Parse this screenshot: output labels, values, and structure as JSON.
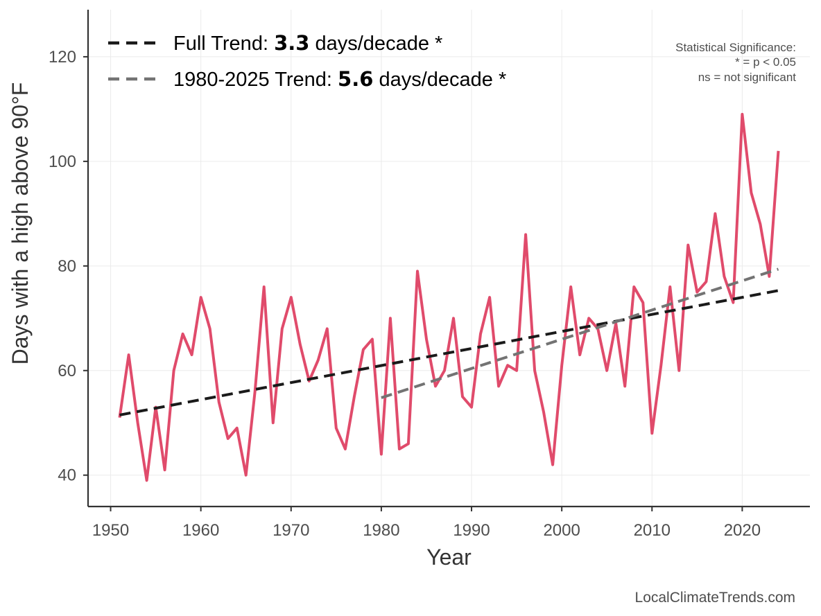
{
  "chart_data": {
    "type": "line",
    "xlabel": "Year",
    "ylabel": "Days with a high above 90°F",
    "xlim": [
      1947.5,
      2027.5
    ],
    "ylim": [
      34,
      129
    ],
    "xticks": [
      1950,
      1960,
      1970,
      1980,
      1990,
      2000,
      2010,
      2020
    ],
    "yticks": [
      40,
      60,
      80,
      100,
      120
    ],
    "grid": true,
    "legend_position": "top-left",
    "series": [
      {
        "name": "",
        "color": "#e04b6b",
        "x": [
          1951,
          1952,
          1953,
          1954,
          1955,
          1956,
          1957,
          1958,
          1959,
          1960,
          1961,
          1962,
          1963,
          1964,
          1965,
          1966,
          1967,
          1968,
          1969,
          1970,
          1971,
          1972,
          1973,
          1974,
          1975,
          1976,
          1977,
          1978,
          1979,
          1980,
          1981,
          1982,
          1983,
          1984,
          1985,
          1986,
          1987,
          1988,
          1989,
          1990,
          1991,
          1992,
          1993,
          1994,
          1995,
          1996,
          1997,
          1998,
          1999,
          2000,
          2001,
          2002,
          2003,
          2004,
          2005,
          2006,
          2007,
          2008,
          2009,
          2010,
          2011,
          2012,
          2013,
          2014,
          2015,
          2016,
          2017,
          2018,
          2019,
          2020,
          2021,
          2022,
          2023,
          2024
        ],
        "values": [
          51,
          63,
          50,
          39,
          53,
          41,
          60,
          67,
          63,
          74,
          68,
          54,
          47,
          49,
          40,
          56,
          76,
          50,
          68,
          74,
          65,
          58,
          62,
          68,
          49,
          45,
          55,
          64,
          66,
          44,
          70,
          45,
          46,
          79,
          66,
          57,
          60,
          70,
          55,
          53,
          67,
          74,
          57,
          61,
          60,
          86,
          60,
          52,
          42,
          61,
          76,
          63,
          70,
          68,
          60,
          69,
          57,
          76,
          73,
          48,
          61,
          76,
          60,
          84,
          75,
          77,
          90,
          78,
          73,
          109,
          94,
          88,
          78,
          102
        ]
      }
    ],
    "trend_lines": [
      {
        "label_prefix": "Full Trend: ",
        "value": "3.3",
        "label_suffix": " days/decade *",
        "color": "#1a1a1a",
        "x": [
          1951,
          2024
        ],
        "y": [
          51.5,
          75.3
        ]
      },
      {
        "label_prefix": "1980-2025 Trend: ",
        "value": "5.6",
        "label_suffix": " days/decade *",
        "color": "#737373",
        "x": [
          1980,
          2024
        ],
        "y": [
          54.8,
          79.4
        ]
      }
    ],
    "annotations": {
      "significance_title": "Statistical Significance:",
      "significance_line1": "* = p < 0.05",
      "significance_line2": "ns = not significant"
    }
  },
  "credit": "LocalClimateTrends.com"
}
